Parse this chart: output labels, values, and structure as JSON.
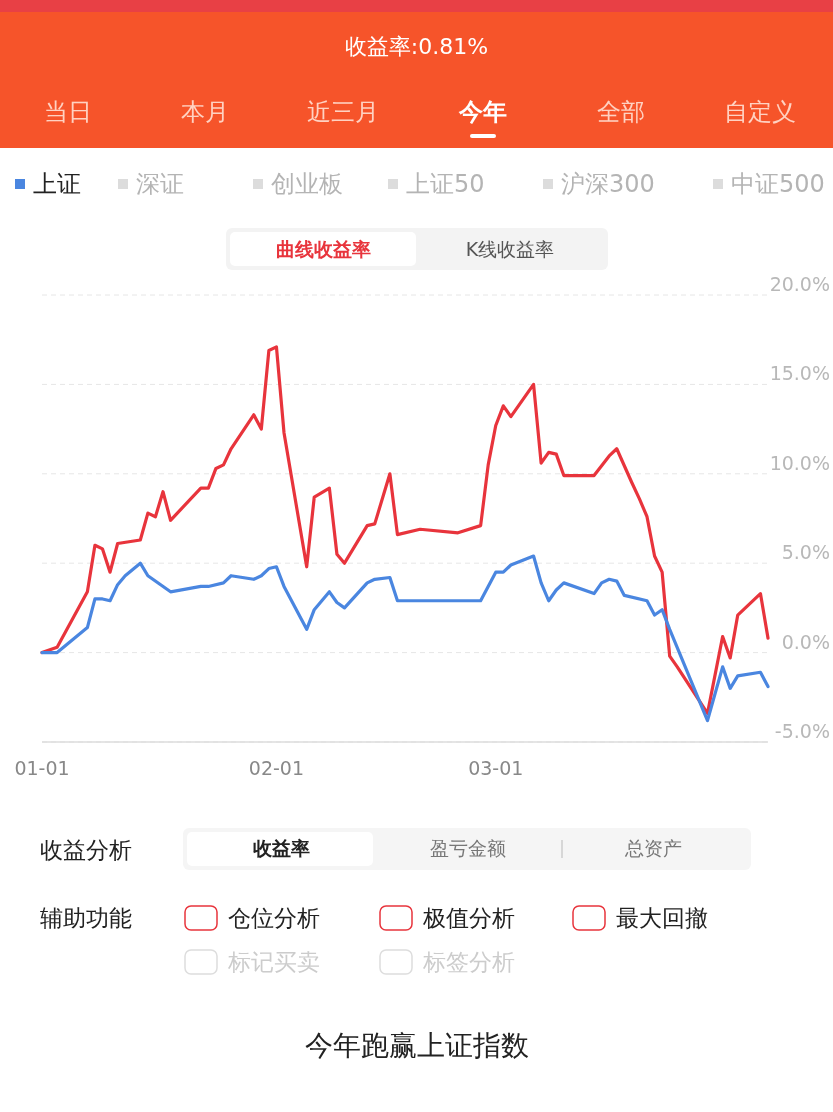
{
  "chart_data": {
    "type": "line",
    "title": "收益率:0.81%",
    "xlim": [
      "--01-01",
      "--04-06"
    ],
    "xticks": [
      {
        "value": "--01-01",
        "label": "01-01"
      },
      {
        "value": "--02-01",
        "label": "02-01"
      },
      {
        "value": "--03-01",
        "label": "03-01"
      }
    ],
    "ylim": [
      -5,
      20
    ],
    "yticks": [
      {
        "value": -5,
        "label": "-5.0%"
      },
      {
        "value": 0,
        "label": "0.0%"
      },
      {
        "value": 5,
        "label": "5.0%"
      },
      {
        "value": 10,
        "label": "10.0%"
      },
      {
        "value": 15,
        "label": "15.0%"
      },
      {
        "value": 20,
        "label": "20.0%"
      }
    ],
    "grid": "y",
    "legend": "top",
    "line_style": "solid",
    "marker": "none",
    "series": [
      {
        "color": "#e8343c",
        "x": [
          "--01-01",
          "--01-03",
          "--01-07",
          "--01-08",
          "--01-09",
          "--01-10",
          "--01-11",
          "--01-14",
          "--01-15",
          "--01-16",
          "--01-17",
          "--01-18",
          "--01-22",
          "--01-23",
          "--01-24",
          "--01-25",
          "--01-26",
          "--01-29",
          "--01-30",
          "--01-31",
          "--02-01",
          "--02-02",
          "--02-05",
          "--02-06",
          "--02-08",
          "--02-09",
          "--02-10",
          "--02-13",
          "--02-14",
          "--02-16",
          "--02-17",
          "--02-20",
          "--02-25",
          "--02-28",
          "--02-29",
          "--03-01",
          "--03-02",
          "--03-03",
          "--03-06",
          "--03-07",
          "--03-08",
          "--03-09",
          "--03-10",
          "--03-14",
          "--03-16",
          "--03-17",
          "--03-19",
          "--03-20",
          "--03-21",
          "--03-22",
          "--03-23",
          "--03-24",
          "--03-25",
          "--03-29",
          "--03-31",
          "--04-01",
          "--04-02",
          "--04-05",
          "--04-06"
        ],
        "values": [
          0,
          0.3,
          3.4,
          6.0,
          5.8,
          4.5,
          6.1,
          6.3,
          7.8,
          7.6,
          9.0,
          7.4,
          9.2,
          9.2,
          10.3,
          10.5,
          11.4,
          13.3,
          12.5,
          16.9,
          17.1,
          12.3,
          4.8,
          8.7,
          9.2,
          5.5,
          5.0,
          7.1,
          7.2,
          10.0,
          6.6,
          6.9,
          6.7,
          7.1,
          10.5,
          12.7,
          13.8,
          13.2,
          15.0,
          10.6,
          11.2,
          11.1,
          9.9,
          9.9,
          11.0,
          11.4,
          9.5,
          8.6,
          7.6,
          5.4,
          4.5,
          -0.2,
          -0.8,
          -3.4,
          0.9,
          -0.3,
          2.1,
          3.3,
          0.81
        ]
      },
      {
        "name": "上证",
        "color": "#4a86e0",
        "x": [
          "--01-01",
          "--01-03",
          "--01-07",
          "--01-08",
          "--01-09",
          "--01-10",
          "--01-11",
          "--01-12",
          "--01-14",
          "--01-15",
          "--01-18",
          "--01-22",
          "--01-23",
          "--01-25",
          "--01-26",
          "--01-29",
          "--01-30",
          "--01-31",
          "--02-01",
          "--02-02",
          "--02-05",
          "--02-06",
          "--02-08",
          "--02-09",
          "--02-10",
          "--02-13",
          "--02-14",
          "--02-16",
          "--02-17",
          "--02-28",
          "--03-01",
          "--03-02",
          "--03-03",
          "--03-06",
          "--03-07",
          "--03-08",
          "--03-09",
          "--03-10",
          "--03-14",
          "--03-15",
          "--03-16",
          "--03-17",
          "--03-18",
          "--03-21",
          "--03-22",
          "--03-23",
          "--03-24",
          "--03-29",
          "--03-31",
          "--04-01",
          "--04-02",
          "--04-05",
          "--04-06"
        ],
        "values": [
          0,
          0,
          1.4,
          3.0,
          3.0,
          2.9,
          3.8,
          4.3,
          5.0,
          4.3,
          3.4,
          3.7,
          3.7,
          3.9,
          4.3,
          4.1,
          4.3,
          4.7,
          4.8,
          3.7,
          1.3,
          2.4,
          3.4,
          2.8,
          2.5,
          3.9,
          4.1,
          4.2,
          2.9,
          2.9,
          4.5,
          4.5,
          4.9,
          5.4,
          3.9,
          2.9,
          3.5,
          3.9,
          3.3,
          3.9,
          4.1,
          4.0,
          3.2,
          2.9,
          2.1,
          2.4,
          1.3,
          -3.8,
          -0.8,
          -2.0,
          -1.3,
          -1.1,
          -1.9
        ]
      }
    ],
    "annotations": [
      "当日",
      "本月",
      "近三月",
      "今年",
      "全部",
      "自定义",
      "深证",
      "创业板",
      "上证50",
      "沪深300",
      "中证500",
      "曲线收益率",
      "K线收益率",
      "收益分析",
      "收益率",
      "盈亏金额",
      "总资产",
      "辅助功能",
      "仓位分析",
      "极值分析",
      "最大回撤",
      "标记买卖",
      "标签分析",
      "今年跑赢上证指数"
    ]
  }
}
